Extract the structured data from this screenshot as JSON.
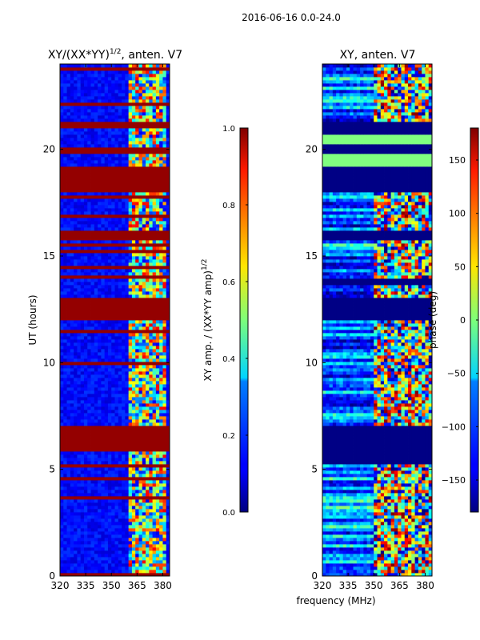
{
  "suptitle": "2016-06-16 0.0-24.0",
  "chart_data": [
    {
      "type": "heatmap",
      "title": "XY/(XX*YY)",
      "title_exponent": "1/2",
      "title_suffix": ", anten. V7",
      "xlabel": "",
      "ylabel": "UT (hours)",
      "xlim": [
        320,
        384
      ],
      "ylim": [
        0,
        24
      ],
      "xticks": [
        "320",
        "335",
        "350",
        "365",
        "380"
      ],
      "yticks": [
        "0",
        "5",
        "10",
        "15",
        "20"
      ],
      "colorbar": {
        "label": "XY amp. / (XX*YY amp)",
        "label_exponent": "1/2",
        "range": [
          0.0,
          1.0
        ],
        "ticks": [
          "0.0",
          "0.2",
          "0.4",
          "0.6",
          "0.8",
          "1.0"
        ]
      },
      "saturated_bands_hours": [
        [
          6.0,
          7.0
        ],
        [
          12.0,
          13.0
        ],
        [
          15.8,
          16.2
        ],
        [
          18.0,
          19.2
        ],
        [
          19.8,
          20.1
        ],
        [
          21.0,
          21.3
        ]
      ],
      "active_channel_band_mhz": [
        359,
        381
      ]
    },
    {
      "type": "heatmap",
      "title": "XY, anten. V7",
      "xlabel": "frequency (MHz)",
      "ylabel": "",
      "xlim": [
        320,
        384
      ],
      "ylim": [
        0,
        24
      ],
      "xticks": [
        "320",
        "335",
        "350",
        "365",
        "380"
      ],
      "yticks": [
        "0",
        "5",
        "10",
        "15",
        "20"
      ],
      "colorbar": {
        "label": "phase (deg)",
        "range": [
          -180,
          180
        ],
        "ticks": [
          "−150",
          "−100",
          "−50",
          "0",
          "50",
          "100",
          "150"
        ]
      },
      "flat_bands_hours": [
        [
          5.2,
          6.0
        ],
        [
          6.0,
          7.0
        ],
        [
          12.0,
          13.0
        ],
        [
          13.6,
          14.0
        ],
        [
          15.8,
          16.2
        ],
        [
          18.0,
          19.2
        ],
        [
          19.2,
          19.8
        ],
        [
          19.8,
          20.1
        ],
        [
          20.1,
          20.7
        ],
        [
          20.7,
          21.0
        ],
        [
          21.0,
          21.3
        ]
      ]
    }
  ]
}
